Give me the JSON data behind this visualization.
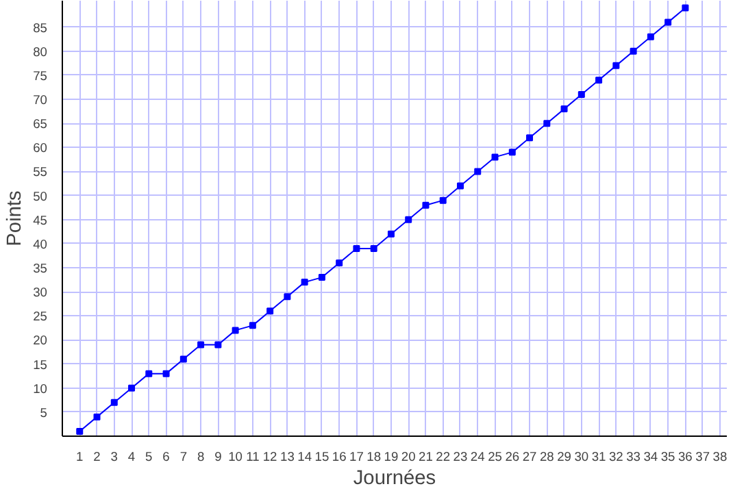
{
  "chart_data": {
    "type": "line",
    "xlabel": "Journées",
    "ylabel": "Points",
    "x": [
      1,
      2,
      3,
      4,
      5,
      6,
      7,
      8,
      9,
      10,
      11,
      12,
      13,
      14,
      15,
      16,
      17,
      18,
      19,
      20,
      21,
      22,
      23,
      24,
      25,
      26,
      27,
      28,
      29,
      30,
      31,
      32,
      33,
      34,
      35,
      36
    ],
    "series": [
      {
        "color": "#0000ff",
        "values": [
          1,
          4,
          7,
          10,
          13,
          13,
          16,
          19,
          19,
          22,
          23,
          26,
          29,
          32,
          33,
          36,
          39,
          39,
          42,
          45,
          48,
          49,
          52,
          55,
          58,
          59,
          62,
          65,
          68,
          71,
          74,
          77,
          80,
          83,
          86,
          89
        ]
      }
    ],
    "xlim": [
      0,
      38.4
    ],
    "ylim": [
      0,
      90.5
    ],
    "xticks": [
      1,
      2,
      3,
      4,
      5,
      6,
      7,
      8,
      9,
      10,
      11,
      12,
      13,
      14,
      15,
      16,
      17,
      18,
      19,
      20,
      21,
      22,
      23,
      24,
      25,
      26,
      27,
      28,
      29,
      30,
      31,
      32,
      33,
      34,
      35,
      36,
      37,
      38
    ],
    "yticks": [
      5,
      10,
      15,
      20,
      25,
      30,
      35,
      40,
      45,
      50,
      55,
      60,
      65,
      70,
      75,
      80,
      85
    ],
    "grid": true,
    "marker": "square",
    "line_style": "solid"
  }
}
